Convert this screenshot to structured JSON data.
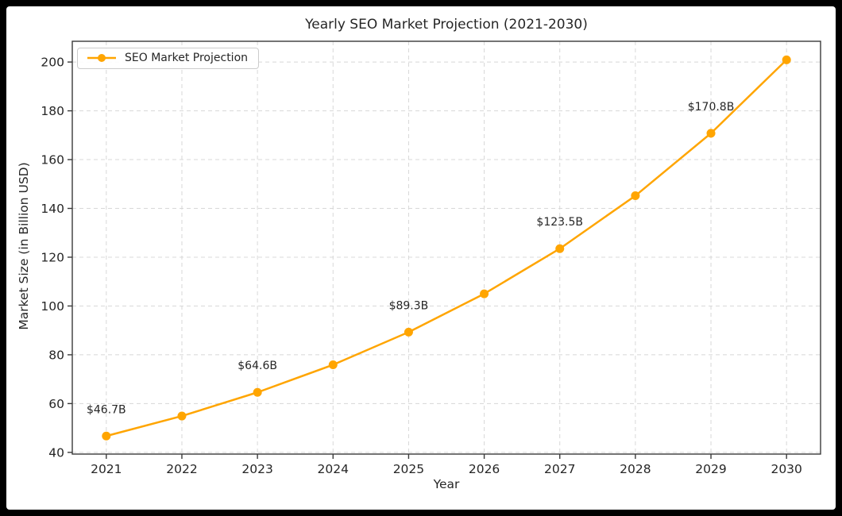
{
  "figure": {
    "title": "Yearly SEO Market Projection (2021-2030)",
    "xlabel": "Year",
    "ylabel": "Market Size (in Billion USD)",
    "legend": {
      "label": "SEO Market Projection",
      "position": "upper left"
    },
    "colors": {
      "line": "#FFA500",
      "marker": "#FFA500",
      "text": "#262626",
      "tick_text": "#262626",
      "grid": "#d8d8d8",
      "spine": "#3a3a3a",
      "background": "#ffffff",
      "frame": "#000000"
    }
  },
  "chart_data": {
    "type": "line",
    "x": [
      2021,
      2022,
      2023,
      2024,
      2025,
      2026,
      2027,
      2028,
      2029,
      2030
    ],
    "series": [
      {
        "name": "SEO Market Projection",
        "values": [
          46.7,
          54.9,
          64.6,
          75.9,
          89.3,
          105.0,
          123.5,
          145.2,
          170.8,
          200.9
        ]
      }
    ],
    "annotations": [
      {
        "x": 2021,
        "text": "$46.7B"
      },
      {
        "x": 2023,
        "text": "$64.6B"
      },
      {
        "x": 2025,
        "text": "$89.3B"
      },
      {
        "x": 2027,
        "text": "$123.5B"
      },
      {
        "x": 2029,
        "text": "$170.8B"
      }
    ],
    "xticks": [
      2021,
      2022,
      2023,
      2024,
      2025,
      2026,
      2027,
      2028,
      2029,
      2030
    ],
    "yticks": [
      40,
      60,
      80,
      100,
      120,
      140,
      160,
      180,
      200
    ],
    "xlim": [
      2020.55,
      2030.45
    ],
    "ylim": [
      39.3,
      208.5
    ],
    "grid": true,
    "grid_style": "dashed",
    "legend_position": "upper left",
    "title": "Yearly SEO Market Projection (2021-2030)",
    "xlabel": "Year",
    "ylabel": "Market Size (in Billion USD)"
  }
}
